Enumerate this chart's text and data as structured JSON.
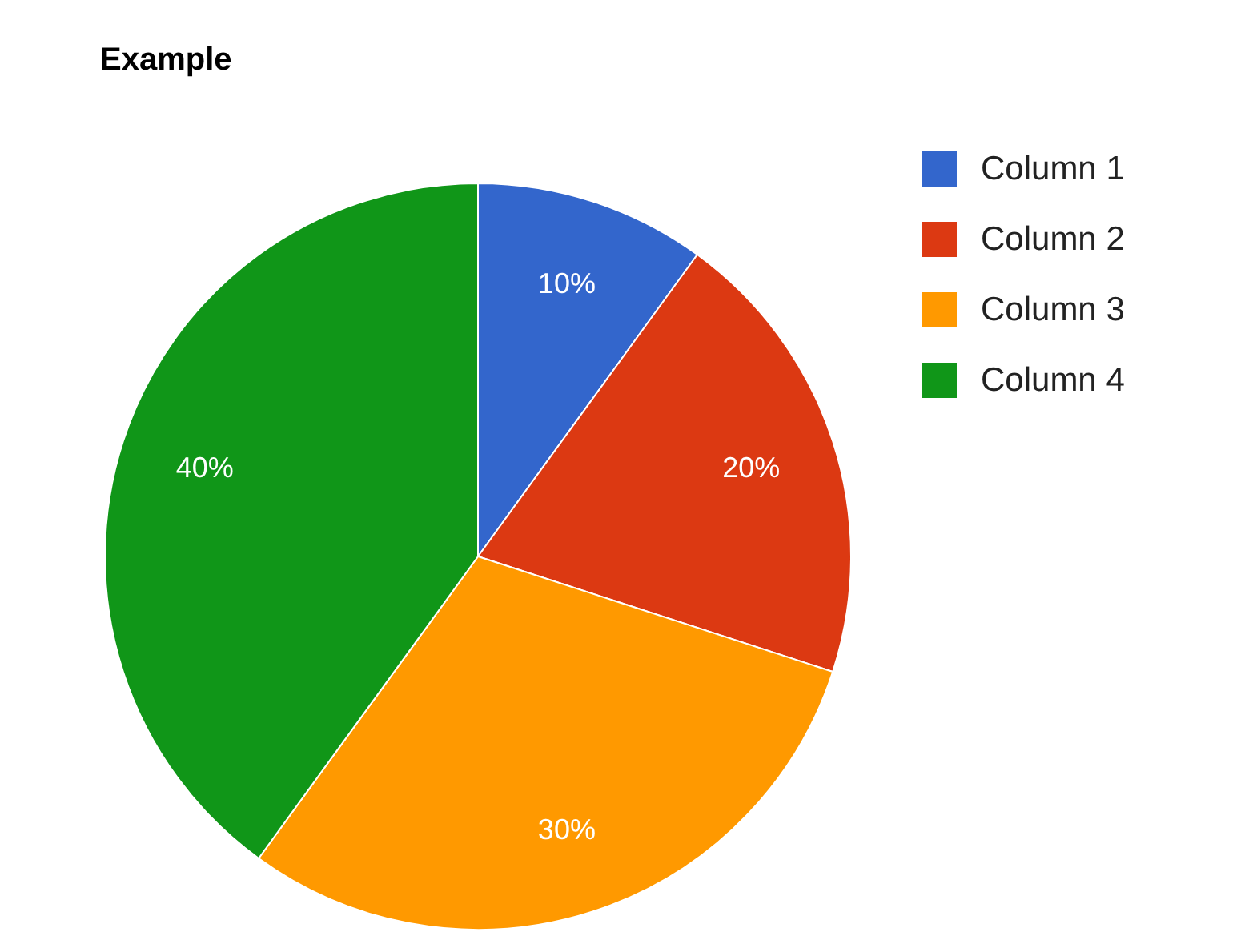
{
  "chart_data": {
    "type": "pie",
    "title": "Example",
    "categories": [
      "Column 1",
      "Column 2",
      "Column 3",
      "Column 4"
    ],
    "values": [
      10,
      20,
      30,
      40
    ],
    "colors": [
      "#3366cc",
      "#dc3912",
      "#ff9900",
      "#109618"
    ],
    "value_labels": [
      "10%",
      "20%",
      "30%",
      "40%"
    ],
    "legend": "top right"
  }
}
